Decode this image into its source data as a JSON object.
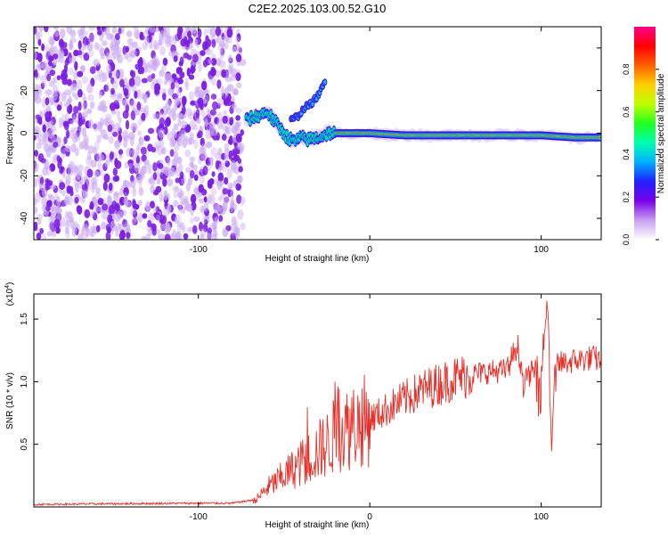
{
  "title": "C2E2.2025.103.00.52.G10",
  "top_panel": {
    "xlabel": "Height of straight line (km)",
    "ylabel": "Frequency (Hz)",
    "colorbar_label": "Normalized spectral amplitude"
  },
  "bottom_panel": {
    "xlabel": "Height of straight line (km)",
    "ylabel": "SNR (10 * v/v)",
    "scale_label": "(x10",
    "scale_exp": "4",
    "scale_close": ")"
  },
  "colors": {
    "snr_line": "#e8302a",
    "noise_purple": "#7a1fe0",
    "noise_light": "#c9a8f2"
  },
  "chart_data": [
    {
      "type": "heatmap",
      "title": "C2E2.2025.103.00.52.G10",
      "xlabel": "Height of straight line (km)",
      "ylabel": "Frequency (Hz)",
      "xlim": [
        -196,
        135
      ],
      "ylim": [
        -50,
        50
      ],
      "xticks": [
        {
          "value": -100,
          "label": "-100"
        },
        {
          "value": 0,
          "label": "0"
        },
        {
          "value": 100,
          "label": "100"
        }
      ],
      "yticks": [
        {
          "value": -40,
          "label": "-40"
        },
        {
          "value": -20,
          "label": "-20"
        },
        {
          "value": 0,
          "label": "0"
        },
        {
          "value": 20,
          "label": "20"
        },
        {
          "value": 40,
          "label": "40"
        }
      ],
      "colorbar": {
        "label": "Normalized spectral amplitude",
        "range": [
          0,
          1
        ],
        "ticks": [
          {
            "value": 0.0,
            "label": "0.0"
          },
          {
            "value": 0.2,
            "label": "0.2"
          },
          {
            "value": 0.4,
            "label": "0.4"
          },
          {
            "value": 0.6,
            "label": "0.6"
          },
          {
            "value": 0.8,
            "label": "0.8"
          }
        ],
        "colors": [
          "#ffffff",
          "#c8a0f0",
          "#7a00e8",
          "#2020ff",
          "#00b0ff",
          "#00ffb0",
          "#20ff20",
          "#c0ff00",
          "#ffd000",
          "#ff6000",
          "#ff0000",
          "#ff0090"
        ]
      },
      "noise_region_x": [
        -196,
        -74
      ],
      "signal_track": {
        "x": [
          -72,
          -66,
          -60,
          -56,
          -52,
          -48,
          -44,
          -40,
          -36,
          -30,
          -24,
          -20,
          -10,
          0,
          20,
          40,
          60,
          80,
          100,
          120,
          135
        ],
        "y": [
          6,
          8,
          10,
          6,
          2,
          -2,
          -4,
          -2,
          -3,
          -2,
          0,
          0,
          0,
          0,
          -1,
          -1,
          -1,
          -1,
          -1,
          -2,
          -2
        ]
      },
      "branch_track": {
        "x": [
          -46,
          -42,
          -38,
          -34,
          -30,
          -26
        ],
        "y": [
          6,
          8,
          12,
          14,
          18,
          24
        ]
      }
    },
    {
      "type": "line",
      "xlabel": "Height of straight line (km)",
      "ylabel": "SNR (10 * v/v)",
      "xlim": [
        -196,
        135
      ],
      "ylim": [
        0,
        17000
      ],
      "xticks": [
        {
          "value": -100,
          "label": "-100"
        },
        {
          "value": 0,
          "label": "0"
        },
        {
          "value": 100,
          "label": "100"
        }
      ],
      "yticks": [
        {
          "value": 5000,
          "label": "0.5"
        },
        {
          "value": 10000,
          "label": "1.0"
        },
        {
          "value": 15000,
          "label": "1.5"
        }
      ],
      "series": [
        {
          "color": "#e8302a",
          "x": [
            -196,
            -150,
            -100,
            -80,
            -66,
            -60,
            -50,
            -40,
            -30,
            -25,
            -20,
            -10,
            0,
            10,
            20,
            30,
            40,
            50,
            60,
            70,
            80,
            86,
            90,
            96,
            100,
            104,
            106,
            108,
            110,
            120,
            130,
            135
          ],
          "y": [
            200,
            250,
            300,
            300,
            600,
            1500,
            2500,
            3500,
            4500,
            5000,
            5800,
            6500,
            7000,
            7800,
            8600,
            9300,
            9800,
            10300,
            10600,
            10800,
            10900,
            13000,
            10000,
            11000,
            11200,
            16800,
            4200,
            11800,
            11400,
            11700,
            11900,
            11700
          ]
        }
      ]
    }
  ]
}
